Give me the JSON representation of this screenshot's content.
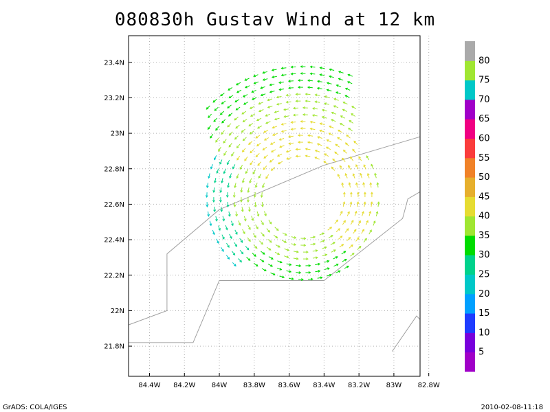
{
  "chart_data": {
    "type": "vector-field",
    "title": "080830h Gustav Wind at 12 km",
    "x_ticks": [
      {
        "value": -84.4,
        "label": "84.4W"
      },
      {
        "value": -84.2,
        "label": "84.2W"
      },
      {
        "value": -84.0,
        "label": "84W"
      },
      {
        "value": -83.8,
        "label": "83.8W"
      },
      {
        "value": -83.6,
        "label": "83.6W"
      },
      {
        "value": -83.4,
        "label": "83.4W"
      },
      {
        "value": -83.2,
        "label": "83.2W"
      },
      {
        "value": -83.0,
        "label": "83W"
      },
      {
        "value": -82.8,
        "label": "82.8W"
      }
    ],
    "y_ticks": [
      {
        "value": 21.8,
        "label": "21.8N"
      },
      {
        "value": 22.0,
        "label": "22N"
      },
      {
        "value": 22.2,
        "label": "22.2N"
      },
      {
        "value": 22.4,
        "label": "22.4N"
      },
      {
        "value": 22.6,
        "label": "22.6N"
      },
      {
        "value": 22.8,
        "label": "22.8N"
      },
      {
        "value": 23.0,
        "label": "23N"
      },
      {
        "value": 23.2,
        "label": "23.2N"
      },
      {
        "value": 23.4,
        "label": "23.4N"
      }
    ],
    "xlim": [
      -84.52,
      -82.85
    ],
    "ylim": [
      21.63,
      23.55
    ],
    "grid": true,
    "storm_center": [
      -83.52,
      22.64
    ],
    "coastlines": [
      [
        [
          -84.52,
          21.92
        ],
        [
          -84.3,
          22.0
        ],
        [
          -84.3,
          22.32
        ],
        [
          -84.0,
          22.57
        ],
        [
          -83.4,
          22.82
        ],
        [
          -82.85,
          22.98
        ]
      ],
      [
        [
          -84.52,
          21.82
        ],
        [
          -84.15,
          21.82
        ],
        [
          -84.0,
          22.17
        ],
        [
          -83.4,
          22.17
        ],
        [
          -82.95,
          22.52
        ],
        [
          -82.92,
          22.63
        ],
        [
          -82.85,
          22.67
        ]
      ],
      [
        [
          -83.01,
          21.77
        ],
        [
          -82.87,
          21.97
        ],
        [
          -82.85,
          21.95
        ]
      ]
    ],
    "colorbar": {
      "colors": [
        "#a000c8",
        "#7800dc",
        "#1e3cff",
        "#00a0ff",
        "#00c8c8",
        "#00d28c",
        "#00dc00",
        "#a0e632",
        "#e6dc32",
        "#e6af2d",
        "#f08228",
        "#fa3c3c",
        "#f00082",
        "#a000c8",
        "#00c8c8",
        "#a0e632",
        "#aaaaaa"
      ],
      "labels": [
        "5",
        "10",
        "15",
        "20",
        "25",
        "30",
        "35",
        "40",
        "45",
        "50",
        "55",
        "60",
        "65",
        "70",
        "75",
        "80"
      ]
    }
  },
  "footer": {
    "left": "GrADS: COLA/IGES",
    "right": "2010-02-08-11:18"
  }
}
